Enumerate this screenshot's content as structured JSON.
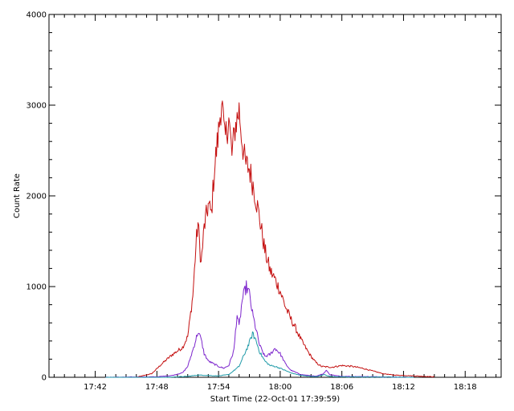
{
  "chart_data": {
    "type": "line",
    "title": "",
    "xlabel": "Start Time (22-Oct-01 17:39:59)",
    "ylabel": "Count Rate",
    "xlim_minutes": [
      -2.5,
      41.5
    ],
    "ylim": [
      0,
      4000
    ],
    "grid": false,
    "legend": "none",
    "x_ticks": [
      {
        "minute": 2,
        "label": "17:42"
      },
      {
        "minute": 8,
        "label": "17:48"
      },
      {
        "minute": 14,
        "label": "17:54"
      },
      {
        "minute": 20,
        "label": "18:00"
      },
      {
        "minute": 26,
        "label": "18:06"
      },
      {
        "minute": 32,
        "label": "18:12"
      },
      {
        "minute": 38,
        "label": "18:18"
      }
    ],
    "y_ticks": [
      {
        "value": 0,
        "label": "0"
      },
      {
        "value": 1000,
        "label": "1000"
      },
      {
        "value": 2000,
        "label": "2000"
      },
      {
        "value": 3000,
        "label": "3000"
      },
      {
        "value": 4000,
        "label": "4000"
      }
    ],
    "series": [
      {
        "color": "#c41010",
        "points": [
          [
            3.0,
            0
          ],
          [
            6.0,
            0
          ],
          [
            7.5,
            40
          ],
          [
            8.5,
            150
          ],
          [
            9.5,
            250
          ],
          [
            10.5,
            330
          ],
          [
            11.0,
            450
          ],
          [
            11.5,
            900
          ],
          [
            11.8,
            1450
          ],
          [
            12.0,
            1700
          ],
          [
            12.3,
            1250
          ],
          [
            12.6,
            1650
          ],
          [
            13.0,
            1900
          ],
          [
            13.3,
            1800
          ],
          [
            13.6,
            2300
          ],
          [
            14.0,
            2700
          ],
          [
            14.3,
            3080
          ],
          [
            14.6,
            2600
          ],
          [
            15.0,
            2850
          ],
          [
            15.3,
            2450
          ],
          [
            15.6,
            2750
          ],
          [
            16.0,
            2950
          ],
          [
            16.3,
            2600
          ],
          [
            16.6,
            2350
          ],
          [
            17.0,
            2300
          ],
          [
            17.5,
            2050
          ],
          [
            18.0,
            1750
          ],
          [
            18.5,
            1400
          ],
          [
            19.0,
            1180
          ],
          [
            19.5,
            1080
          ],
          [
            20.0,
            950
          ],
          [
            20.5,
            780
          ],
          [
            21.0,
            650
          ],
          [
            21.5,
            540
          ],
          [
            22.0,
            420
          ],
          [
            22.5,
            320
          ],
          [
            23.0,
            230
          ],
          [
            23.5,
            160
          ],
          [
            24.0,
            120
          ],
          [
            25.0,
            110
          ],
          [
            26.0,
            130
          ],
          [
            27.0,
            120
          ],
          [
            28.0,
            100
          ],
          [
            29.0,
            70
          ],
          [
            30.0,
            40
          ],
          [
            31.0,
            25
          ],
          [
            33.0,
            15
          ],
          [
            35.0,
            5
          ]
        ]
      },
      {
        "color": "#7d26cd",
        "points": [
          [
            3.0,
            0
          ],
          [
            8.0,
            5
          ],
          [
            9.5,
            20
          ],
          [
            10.5,
            50
          ],
          [
            11.0,
            120
          ],
          [
            11.5,
            300
          ],
          [
            12.0,
            500
          ],
          [
            12.3,
            420
          ],
          [
            12.6,
            260
          ],
          [
            13.0,
            180
          ],
          [
            13.5,
            150
          ],
          [
            14.0,
            120
          ],
          [
            14.5,
            100
          ],
          [
            15.0,
            130
          ],
          [
            15.5,
            300
          ],
          [
            15.8,
            700
          ],
          [
            16.0,
            550
          ],
          [
            16.3,
            850
          ],
          [
            16.7,
            1000
          ],
          [
            17.0,
            920
          ],
          [
            17.3,
            700
          ],
          [
            17.7,
            500
          ],
          [
            18.0,
            350
          ],
          [
            18.5,
            230
          ],
          [
            19.0,
            250
          ],
          [
            19.5,
            320
          ],
          [
            20.0,
            260
          ],
          [
            20.5,
            150
          ],
          [
            21.0,
            80
          ],
          [
            22.0,
            30
          ],
          [
            23.5,
            10
          ],
          [
            24.2,
            40
          ],
          [
            24.5,
            80
          ],
          [
            24.8,
            30
          ],
          [
            26.0,
            10
          ],
          [
            30.0,
            5
          ],
          [
            33.0,
            0
          ]
        ]
      },
      {
        "color": "#1f9aa8",
        "points": [
          [
            3.0,
            0
          ],
          [
            9.0,
            0
          ],
          [
            11.0,
            10
          ],
          [
            12.0,
            25
          ],
          [
            13.0,
            20
          ],
          [
            14.0,
            15
          ],
          [
            15.0,
            30
          ],
          [
            16.0,
            120
          ],
          [
            16.5,
            250
          ],
          [
            17.0,
            380
          ],
          [
            17.3,
            480
          ],
          [
            17.6,
            420
          ],
          [
            18.0,
            280
          ],
          [
            18.5,
            180
          ],
          [
            19.0,
            130
          ],
          [
            19.5,
            120
          ],
          [
            20.0,
            100
          ],
          [
            21.0,
            50
          ],
          [
            22.0,
            20
          ],
          [
            23.5,
            5
          ],
          [
            24.3,
            30
          ],
          [
            24.8,
            10
          ],
          [
            26.0,
            5
          ],
          [
            33.0,
            0
          ]
        ]
      }
    ]
  }
}
